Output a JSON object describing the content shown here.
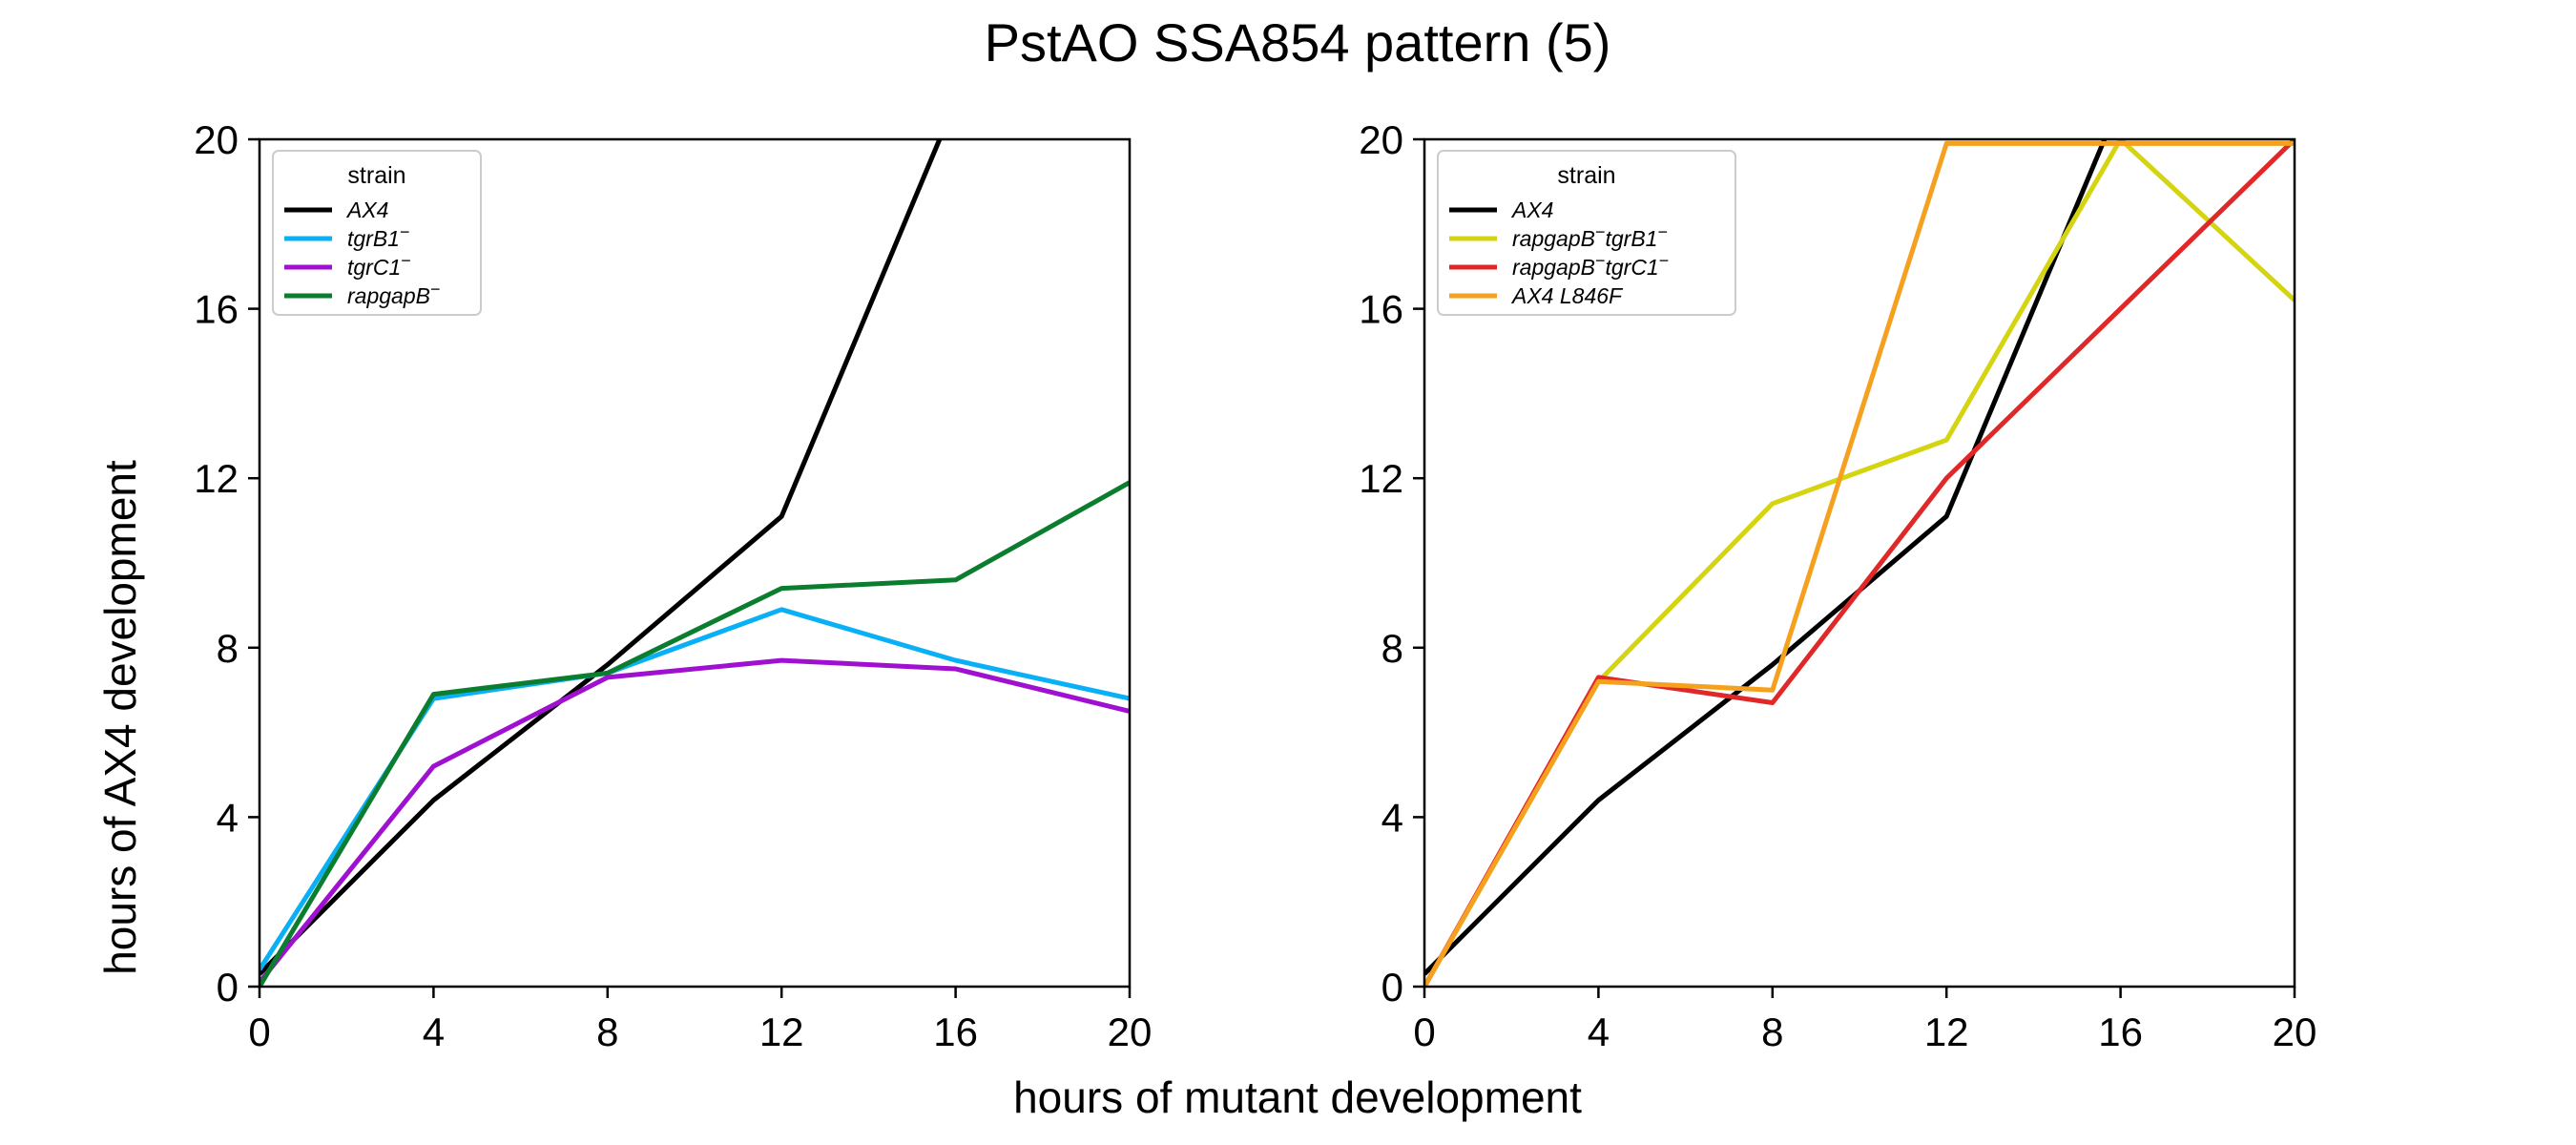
{
  "figure": {
    "title": "PstAO SSA854 pattern (5)",
    "xlabel": "hours of mutant development",
    "ylabel": "hours of AX4 development"
  },
  "chart_data": [
    {
      "type": "line",
      "title": "",
      "xlim": [
        0,
        20
      ],
      "ylim": [
        0,
        20
      ],
      "xticks": [
        0,
        4,
        8,
        12,
        16,
        20
      ],
      "yticks": [
        0,
        4,
        8,
        12,
        16,
        20
      ],
      "grid": false,
      "legend": {
        "title": "strain",
        "placement": "top-left"
      },
      "x": [
        0,
        4,
        8,
        12,
        16,
        20
      ],
      "series": [
        {
          "name": "AX4",
          "label": "AX4",
          "color": "#000000",
          "points": [
            [
              0,
              0.3
            ],
            [
              4,
              4.4
            ],
            [
              8,
              7.6
            ],
            [
              12,
              11.1
            ],
            [
              16,
              20.9
            ]
          ]
        },
        {
          "name": "tgrB1−",
          "label": "tgrB1",
          "sup": "−",
          "color": "#0ab0f5",
          "points": [
            [
              0,
              0.4
            ],
            [
              4,
              6.8
            ],
            [
              8,
              7.4
            ],
            [
              12,
              8.9
            ],
            [
              16,
              7.7
            ],
            [
              20,
              6.8
            ]
          ]
        },
        {
          "name": "tgrC1−",
          "label": "tgrC1",
          "sup": "−",
          "color": "#a010d0",
          "points": [
            [
              0,
              0.1
            ],
            [
              4,
              5.2
            ],
            [
              8,
              7.3
            ],
            [
              12,
              7.7
            ],
            [
              16,
              7.5
            ],
            [
              20,
              6.5
            ]
          ]
        },
        {
          "name": "rapgapB−",
          "label": "rapgapB",
          "sup": "−",
          "color": "#0a7d2e",
          "points": [
            [
              0,
              0.0
            ],
            [
              4,
              6.9
            ],
            [
              8,
              7.4
            ],
            [
              12,
              9.4
            ],
            [
              16,
              9.6
            ],
            [
              20,
              11.9
            ]
          ]
        }
      ]
    },
    {
      "type": "line",
      "title": "",
      "xlim": [
        0,
        20
      ],
      "ylim": [
        0,
        20
      ],
      "xticks": [
        0,
        4,
        8,
        12,
        16,
        20
      ],
      "yticks": [
        0,
        4,
        8,
        12,
        16,
        20
      ],
      "grid": false,
      "legend": {
        "title": "strain",
        "placement": "top-left"
      },
      "x": [
        0,
        4,
        8,
        12,
        16,
        20
      ],
      "series": [
        {
          "name": "AX4",
          "label": "AX4",
          "color": "#000000",
          "points": [
            [
              0,
              0.3
            ],
            [
              4,
              4.4
            ],
            [
              8,
              7.6
            ],
            [
              12,
              11.1
            ],
            [
              16,
              20.9
            ]
          ]
        },
        {
          "name": "rapgapB−tgrB1−",
          "label": "rapgapB",
          "sup": "−",
          "label2": "tgrB1",
          "sup2": "−",
          "color": "#d4d410",
          "points": [
            [
              0,
              0.0
            ],
            [
              4,
              7.2
            ],
            [
              8,
              11.4
            ],
            [
              12,
              12.9
            ],
            [
              16,
              20.0
            ],
            [
              20,
              16.2
            ]
          ]
        },
        {
          "name": "rapgapB−tgrC1−",
          "label": "rapgapB",
          "sup": "−",
          "label2": "tgrC1",
          "sup2": "−",
          "color": "#e02828",
          "points": [
            [
              0,
              0.0
            ],
            [
              4,
              7.3
            ],
            [
              8,
              6.7
            ],
            [
              12,
              12.0
            ],
            [
              16,
              16.0
            ],
            [
              20,
              20.0
            ]
          ]
        },
        {
          "name": "AX4 L846F",
          "label": "AX4 L846F",
          "color": "#f5a01e",
          "points": [
            [
              0,
              0.0
            ],
            [
              4,
              7.2
            ],
            [
              8,
              7.0
            ],
            [
              12,
              19.9
            ],
            [
              16,
              19.9
            ],
            [
              20,
              19.9
            ]
          ]
        }
      ]
    }
  ]
}
